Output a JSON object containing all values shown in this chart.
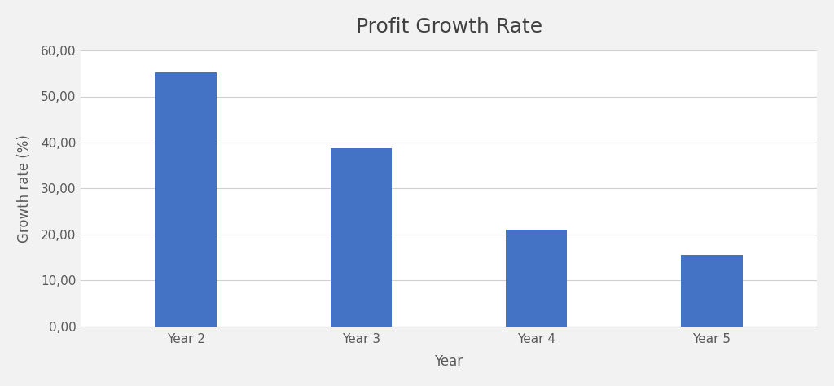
{
  "categories": [
    "Year 2",
    "Year 3",
    "Year 4",
    "Year 5"
  ],
  "values": [
    55.3,
    38.8,
    21.0,
    15.5
  ],
  "bar_color": "#4472C4",
  "title": "Profit Growth Rate",
  "xlabel": "Year",
  "ylabel": "Growth rate (%)",
  "ylim": [
    0,
    60
  ],
  "yticks": [
    0,
    10,
    20,
    30,
    40,
    50,
    60
  ],
  "ytick_labels": [
    "0,00",
    "10,00",
    "20,00",
    "30,00",
    "40,00",
    "50,00",
    "60,00"
  ],
  "background_color": "#f2f2f2",
  "plot_bg_color": "#ffffff",
  "grid_color": "#d0d0d0",
  "title_fontsize": 18,
  "axis_label_fontsize": 12,
  "tick_fontsize": 11,
  "bar_width": 0.35,
  "tick_label_color": "#595959"
}
